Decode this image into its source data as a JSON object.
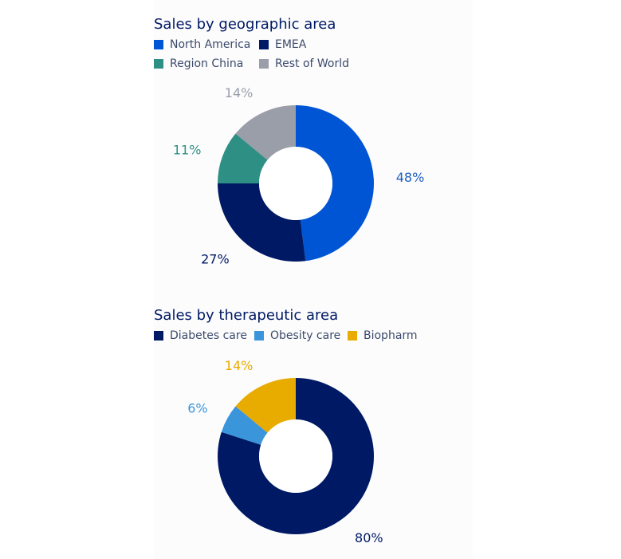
{
  "chart_data": [
    {
      "type": "pie",
      "title": "Sales by geographic area",
      "categories": [
        "North America",
        "EMEA",
        "Region China",
        "Rest of World"
      ],
      "values": [
        48,
        27,
        11,
        14
      ],
      "labels": [
        "48%",
        "27%",
        "11%",
        "14%"
      ],
      "colors": [
        "#0055d4",
        "#001965",
        "#2e8f85",
        "#9a9ea8"
      ],
      "label_colors": [
        "#1f5fbf",
        "#001965",
        "#2e8f85",
        "#9a9ea8"
      ],
      "legend_placement": "top-left"
    },
    {
      "type": "pie",
      "title": "Sales by therapeutic area",
      "categories": [
        "Diabetes care",
        "Obesity care",
        "Biopharm"
      ],
      "values": [
        80,
        6,
        14
      ],
      "labels": [
        "80%",
        "6%",
        "14%"
      ],
      "colors": [
        "#001965",
        "#3a95db",
        "#e8ab00"
      ],
      "label_colors": [
        "#001965",
        "#3a95db",
        "#e8ab00"
      ],
      "legend_placement": "top-left"
    }
  ]
}
